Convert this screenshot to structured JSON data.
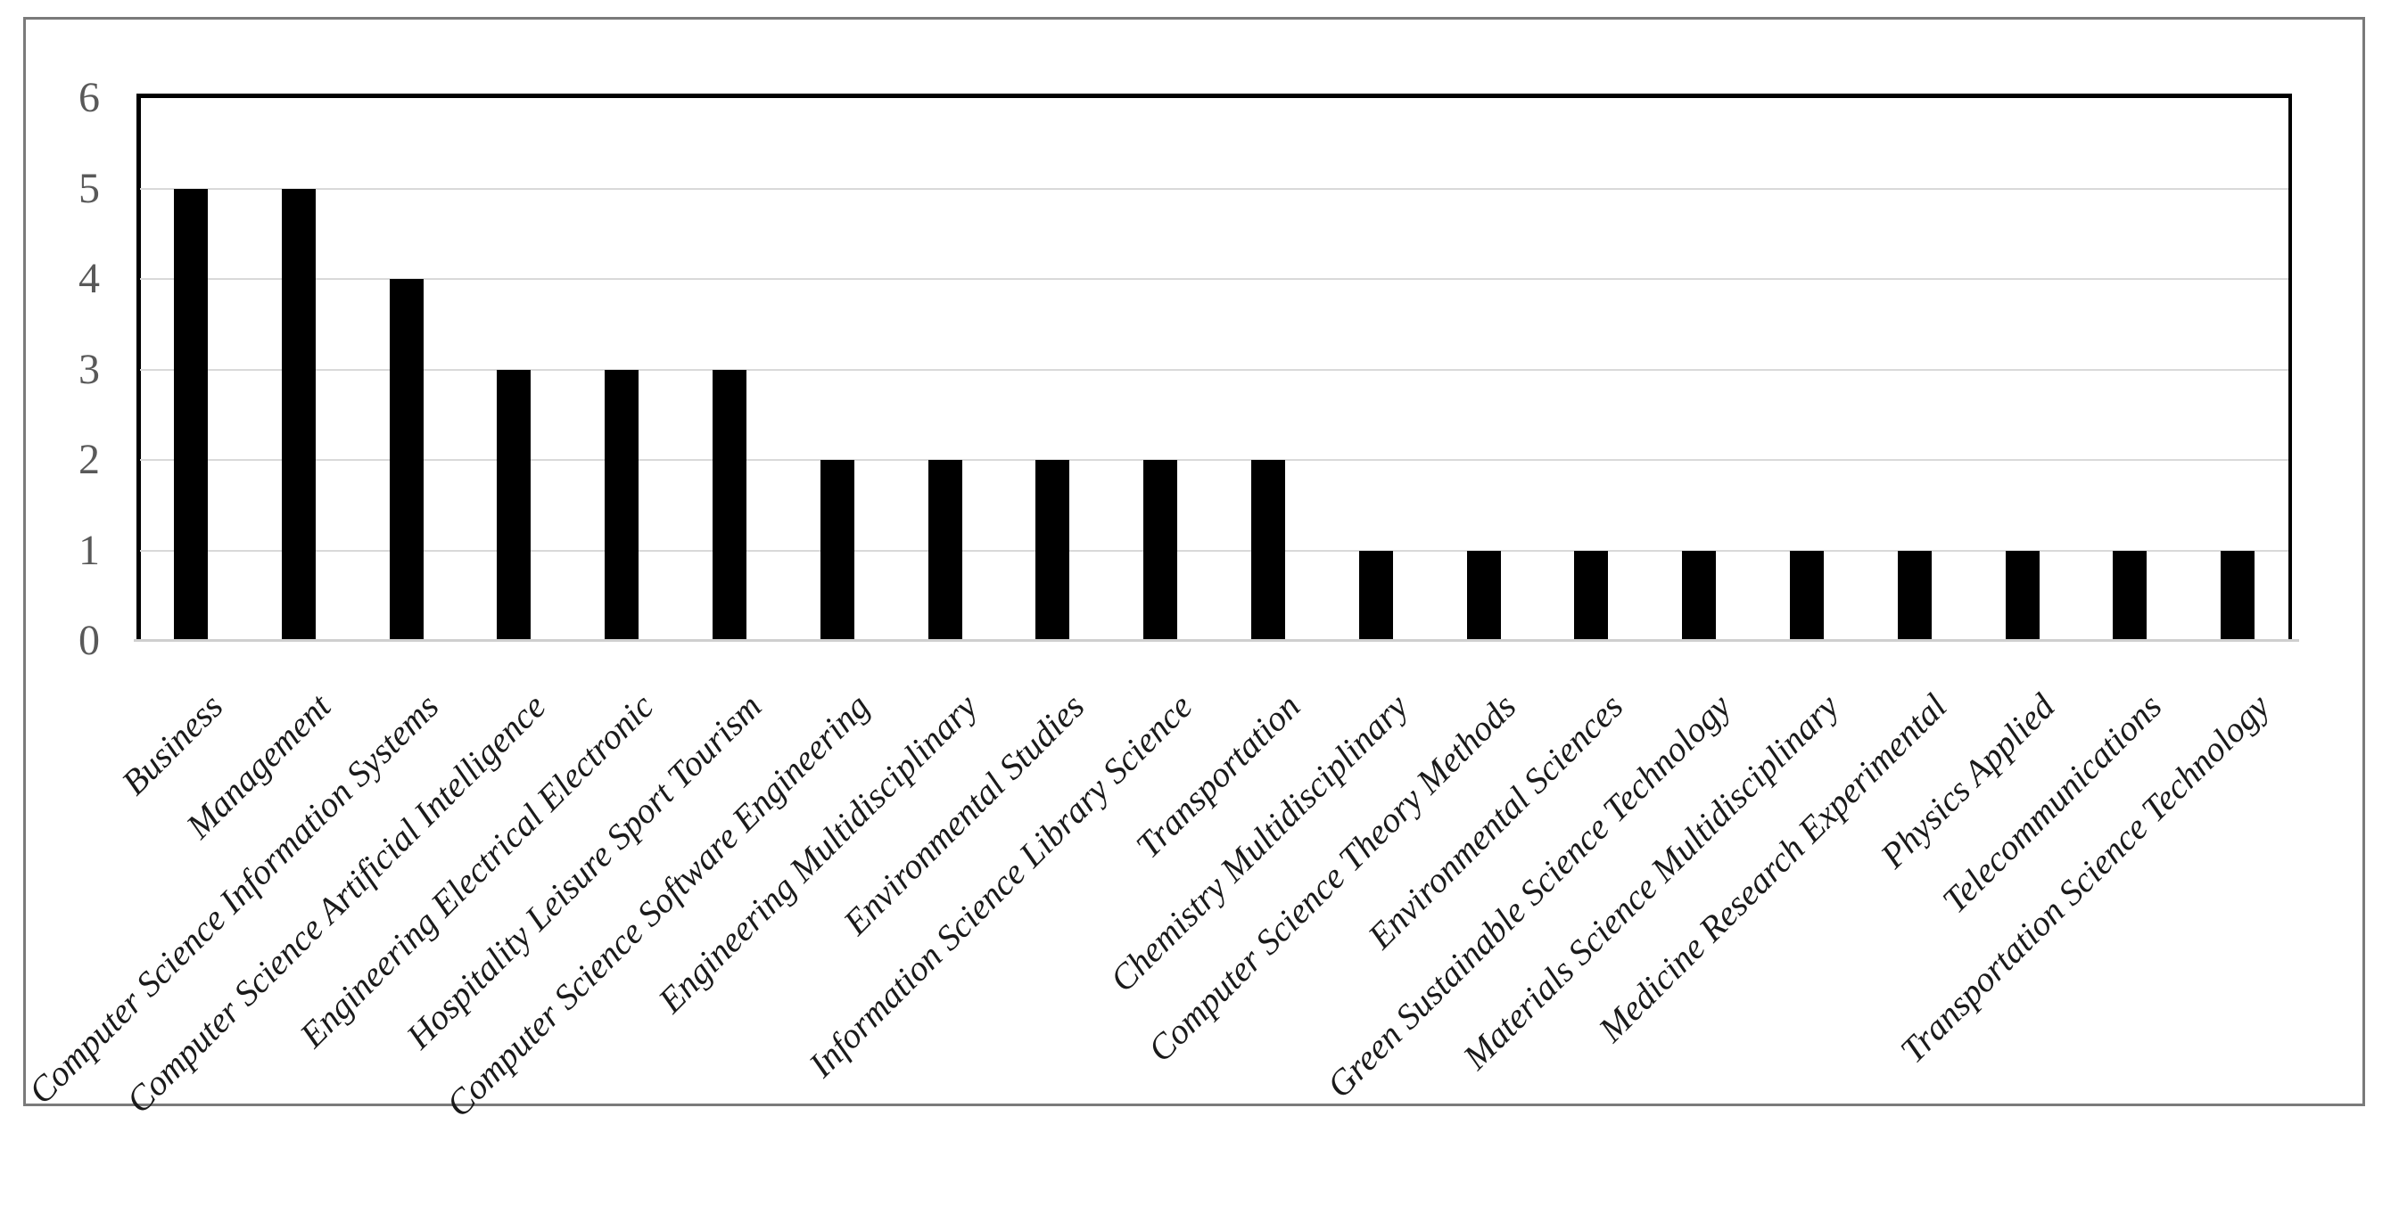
{
  "chart_data": {
    "type": "bar",
    "title": "",
    "xlabel": "",
    "ylabel": "",
    "categories": [
      "Business",
      "Management",
      "Computer Science Information Systems",
      "Computer Science Artificial Intelligence",
      "Engineering Electrical Electronic",
      "Hospitality Leisure Sport Tourism",
      "Computer Science Software Engineering",
      "Engineering Multidisciplinary",
      "Environmental Studies",
      "Information Science Library Science",
      "Transportation",
      "Chemistry Multidisciplinary",
      "Computer Science Theory Methods",
      "Environmental Sciences",
      "Green Sustainable Science Technology",
      "Materials Science Multidisciplinary",
      "Medicine Research Experimental",
      "Physics Applied",
      "Telecommunications",
      "Transportation Science Technology"
    ],
    "values": [
      5,
      5,
      4,
      3,
      3,
      3,
      2,
      2,
      2,
      2,
      2,
      1,
      1,
      1,
      1,
      1,
      1,
      1,
      1,
      1
    ],
    "ylim": [
      0,
      6
    ],
    "yticks": [
      0,
      1,
      2,
      3,
      4,
      5,
      6
    ],
    "grid": true,
    "legend": false,
    "colors": {
      "bar": "#000000",
      "gridline": "#d9d9d9",
      "baseline": "#cfcfcf",
      "axis_frame": "#000000",
      "y_tick_label": "#595959",
      "category_label": "#1a1a1a",
      "figure_border": "#7a7a7a",
      "background": "#ffffff"
    }
  }
}
